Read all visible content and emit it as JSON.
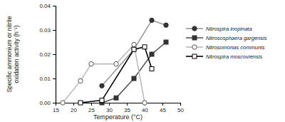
{
  "chart_data": {
    "type": "line",
    "xlabel": "Temperature (°C)",
    "ylabel": "Specific ammonium or nitrite oxidation activity (h⁻¹)",
    "xlim": [
      15,
      50
    ],
    "xticks": [
      15,
      20,
      25,
      30,
      35,
      40,
      45,
      50
    ],
    "ylim": [
      0,
      0.04
    ],
    "yticks": [
      {
        "value": 0,
        "label": "0.00"
      },
      0.01,
      0.02,
      0.03,
      0.04
    ],
    "legend": "right",
    "series": [
      {
        "name": "Nitrospira inopinata",
        "color": "#999999",
        "marker": "circle-filled",
        "x": [
          28,
          37,
          42,
          46
        ],
        "values": [
          0.007,
          0.022,
          0.034,
          0.032
        ]
      },
      {
        "name": "Nitrososphaera gargensis",
        "color": "#555555",
        "marker": "square-filled",
        "x": [
          28,
          32,
          37,
          42,
          46
        ],
        "values": [
          0,
          0.002,
          0.01,
          0.02,
          0.025
        ]
      },
      {
        "name": "Nitrosomonas communis",
        "color": "#bbbbbb",
        "marker": "circle-open",
        "x": [
          17,
          22,
          25,
          32,
          37,
          40
        ],
        "values": [
          0,
          0.009,
          0.016,
          0.016,
          0.024,
          0
        ]
      },
      {
        "name": "Nitrospira moscoviensis",
        "color": "#000000",
        "marker": "square-open",
        "x": [
          22,
          28,
          37,
          40,
          42
        ],
        "values": [
          0,
          0.001,
          0.022,
          0.023,
          0.014
        ]
      }
    ]
  }
}
